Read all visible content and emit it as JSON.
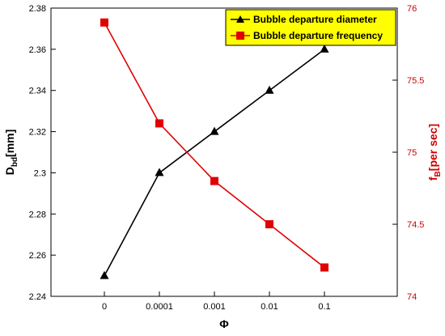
{
  "chart_data": {
    "type": "line",
    "categories": [
      "0",
      "0.0001",
      "0.001",
      "0.01",
      "0.1"
    ],
    "xlabel": "Φ",
    "ylabel_left": "D",
    "ylabel_left_sub": "bd",
    "ylabel_left_unit": "[mm]",
    "ylabel_right": "f",
    "ylabel_right_sub": "B",
    "ylabel_right_unit": "[per sec]",
    "ylim_left": [
      2.24,
      2.38
    ],
    "ylim_right": [
      74,
      76
    ],
    "yticks_left": [
      "2.24",
      "2.26",
      "2.28",
      "2.3",
      "2.32",
      "2.34",
      "2.36",
      "2.38"
    ],
    "yticks_right": [
      "74",
      "74.5",
      "75",
      "75.5",
      "76"
    ],
    "grid": false,
    "legend_position": "top-right",
    "series": [
      {
        "name": "Bubble departure diameter",
        "axis": "left",
        "marker": "triangle",
        "color": "#000000",
        "values": [
          2.25,
          2.3,
          2.32,
          2.34,
          2.36
        ]
      },
      {
        "name": "Bubble departure frequency",
        "axis": "right",
        "marker": "square",
        "color": "#e00000",
        "values": [
          75.9,
          75.2,
          74.8,
          74.5,
          74.2
        ]
      }
    ]
  }
}
